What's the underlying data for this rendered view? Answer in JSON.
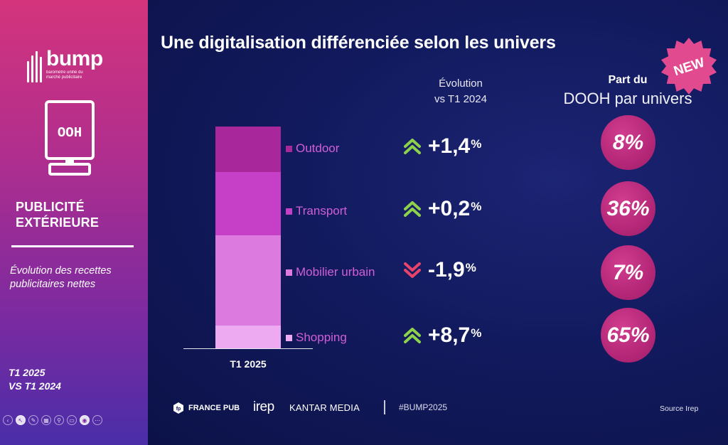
{
  "sidebar": {
    "logo_word": "bump",
    "logo_subtitle": "baromètre unifié du marché publicitaire",
    "ooh_icon_text": "OOH",
    "title_line1": "PUBLICITÉ",
    "title_line2": "EXTÉRIEURE",
    "description": "Évolution des recettes publicitaires nettes",
    "period_line1": "T1 2025",
    "period_line2": "VS T1 2024",
    "toolbar_icons": [
      "prev-icon",
      "pointer-icon",
      "pen-icon",
      "slides-icon",
      "zoom-icon",
      "subtitles-icon",
      "camera-icon",
      "more-icon"
    ]
  },
  "main": {
    "title": "Une digitalisation différenciée selon les univers",
    "new_badge": "NEW",
    "evolution_header_line1": "Évolution",
    "evolution_header_line2": "vs T1 2024",
    "part_header_line1": "Part du",
    "part_header_line2": "DOOH par univers",
    "bar_category": "T1 2025"
  },
  "chart_data": {
    "type": "bar",
    "stacked": true,
    "categories": [
      "T1 2025"
    ],
    "series": [
      {
        "name": "Outdoor",
        "values": [
          20.5
        ],
        "color": "#a8279b"
      },
      {
        "name": "Transport",
        "values": [
          28.5
        ],
        "color": "#c63fc7"
      },
      {
        "name": "Mobilier urbain",
        "values": [
          40.5
        ],
        "color": "#dc7ae0"
      },
      {
        "name": "Shopping",
        "values": [
          10.5
        ],
        "color": "#eeaaf0"
      }
    ],
    "ylim": [
      0,
      100
    ]
  },
  "rows": [
    {
      "name": "Outdoor",
      "color": "#a8279b",
      "trend": "up",
      "evolution": "+1,4",
      "unit": "%",
      "dooh_share": "8%"
    },
    {
      "name": "Transport",
      "color": "#c63fc7",
      "trend": "up",
      "evolution": "+0,2",
      "unit": "%",
      "dooh_share": "36%"
    },
    {
      "name": "Mobilier urbain",
      "color": "#dc7ae0",
      "trend": "down",
      "evolution": "-1,9",
      "unit": "%",
      "dooh_share": "7%"
    },
    {
      "name": "Shopping",
      "color": "#eeaaf0",
      "trend": "up",
      "evolution": "+8,7",
      "unit": "%",
      "dooh_share": "65%"
    }
  ],
  "colors": {
    "up_arrow": "#8ed14a",
    "down_arrow": "#e8446a",
    "circle": "#b52778",
    "label_text": "#d05fd6"
  },
  "footer": {
    "francepub": "FRANCE PUB",
    "irep": "irep",
    "kantar": "KANTAR MEDIA",
    "hashtag": "#BUMP2025",
    "source": "Source Irep"
  }
}
